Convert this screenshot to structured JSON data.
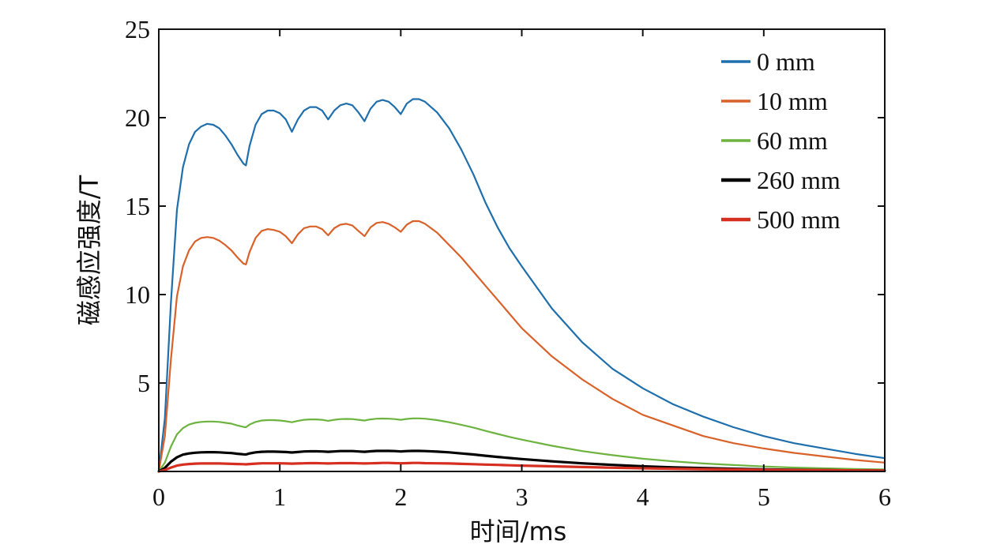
{
  "chart_data": {
    "type": "line",
    "xlabel": "时间/ms",
    "ylabel": "磁感应强度/T",
    "xlim": [
      0,
      6
    ],
    "ylim": [
      0,
      25
    ],
    "xticks": [
      0,
      1,
      2,
      3,
      4,
      5,
      6
    ],
    "yticks": [
      5,
      10,
      15,
      20,
      25
    ],
    "grid": false,
    "legend_position": "top-right",
    "x": [
      0,
      0.05,
      0.1,
      0.15,
      0.2,
      0.25,
      0.3,
      0.35,
      0.4,
      0.45,
      0.5,
      0.55,
      0.6,
      0.65,
      0.7,
      0.72,
      0.75,
      0.8,
      0.85,
      0.9,
      0.95,
      1.0,
      1.05,
      1.1,
      1.15,
      1.2,
      1.25,
      1.3,
      1.35,
      1.4,
      1.45,
      1.5,
      1.55,
      1.6,
      1.65,
      1.7,
      1.75,
      1.8,
      1.85,
      1.9,
      1.95,
      2.0,
      2.05,
      2.1,
      2.15,
      2.2,
      2.3,
      2.4,
      2.5,
      2.6,
      2.7,
      2.8,
      2.9,
      3.0,
      3.25,
      3.5,
      3.75,
      4.0,
      4.25,
      4.5,
      4.75,
      5.0,
      5.25,
      5.5,
      5.75,
      6.0
    ],
    "series": [
      {
        "name": "0 mm",
        "color": "#1f6fad",
        "values": [
          0,
          3.0,
          9.5,
          14.8,
          17.2,
          18.5,
          19.2,
          19.5,
          19.65,
          19.6,
          19.4,
          19.0,
          18.5,
          17.9,
          17.4,
          17.3,
          18.4,
          19.6,
          20.2,
          20.4,
          20.4,
          20.25,
          19.9,
          19.2,
          19.9,
          20.4,
          20.6,
          20.6,
          20.4,
          19.9,
          20.4,
          20.7,
          20.8,
          20.7,
          20.3,
          19.8,
          20.5,
          20.9,
          21.0,
          20.9,
          20.6,
          20.2,
          20.8,
          21.05,
          21.05,
          20.9,
          20.3,
          19.4,
          18.2,
          16.8,
          15.2,
          13.8,
          12.6,
          11.6,
          9.2,
          7.3,
          5.8,
          4.7,
          3.8,
          3.1,
          2.5,
          2.0,
          1.6,
          1.3,
          1.0,
          0.75
        ]
      },
      {
        "name": "10 mm",
        "color": "#d9622b",
        "values": [
          0,
          2.0,
          6.3,
          9.9,
          11.6,
          12.5,
          13.0,
          13.2,
          13.25,
          13.2,
          13.05,
          12.8,
          12.5,
          12.1,
          11.75,
          11.7,
          12.4,
          13.2,
          13.6,
          13.7,
          13.65,
          13.55,
          13.3,
          12.9,
          13.4,
          13.75,
          13.85,
          13.85,
          13.7,
          13.35,
          13.75,
          13.95,
          14.0,
          13.9,
          13.6,
          13.3,
          13.8,
          14.05,
          14.1,
          14.0,
          13.8,
          13.55,
          13.95,
          14.15,
          14.15,
          14.0,
          13.5,
          12.8,
          12.1,
          11.3,
          10.5,
          9.7,
          8.9,
          8.1,
          6.5,
          5.2,
          4.1,
          3.2,
          2.6,
          2.0,
          1.6,
          1.3,
          1.05,
          0.85,
          0.65,
          0.5
        ]
      },
      {
        "name": "60 mm",
        "color": "#6db33f",
        "values": [
          0,
          0.5,
          1.4,
          2.1,
          2.45,
          2.65,
          2.75,
          2.8,
          2.82,
          2.82,
          2.8,
          2.75,
          2.7,
          2.6,
          2.52,
          2.5,
          2.65,
          2.8,
          2.88,
          2.9,
          2.9,
          2.88,
          2.84,
          2.78,
          2.86,
          2.92,
          2.94,
          2.94,
          2.92,
          2.86,
          2.92,
          2.96,
          2.97,
          2.96,
          2.92,
          2.88,
          2.94,
          2.98,
          2.99,
          2.98,
          2.96,
          2.92,
          2.97,
          3.0,
          3.0,
          2.98,
          2.9,
          2.78,
          2.64,
          2.48,
          2.3,
          2.12,
          1.95,
          1.8,
          1.45,
          1.15,
          0.92,
          0.72,
          0.57,
          0.45,
          0.36,
          0.28,
          0.22,
          0.18,
          0.14,
          0.11
        ]
      },
      {
        "name": "260 mm",
        "color": "#000000",
        "values": [
          0,
          0.2,
          0.55,
          0.8,
          0.95,
          1.02,
          1.06,
          1.08,
          1.09,
          1.09,
          1.08,
          1.06,
          1.04,
          1.0,
          0.97,
          0.96,
          1.02,
          1.08,
          1.11,
          1.12,
          1.12,
          1.11,
          1.1,
          1.07,
          1.1,
          1.13,
          1.14,
          1.14,
          1.13,
          1.11,
          1.13,
          1.15,
          1.15,
          1.15,
          1.13,
          1.11,
          1.14,
          1.16,
          1.16,
          1.16,
          1.15,
          1.13,
          1.15,
          1.16,
          1.16,
          1.15,
          1.12,
          1.08,
          1.02,
          0.96,
          0.89,
          0.82,
          0.76,
          0.7,
          0.57,
          0.46,
          0.37,
          0.29,
          0.23,
          0.19,
          0.15,
          0.12,
          0.1,
          0.08,
          0.06,
          0.05
        ]
      },
      {
        "name": "500 mm",
        "color": "#d62e20",
        "values": [
          0,
          0.08,
          0.22,
          0.33,
          0.39,
          0.42,
          0.44,
          0.45,
          0.45,
          0.45,
          0.45,
          0.44,
          0.43,
          0.42,
          0.41,
          0.4,
          0.42,
          0.44,
          0.46,
          0.46,
          0.46,
          0.46,
          0.45,
          0.44,
          0.45,
          0.46,
          0.47,
          0.47,
          0.46,
          0.45,
          0.46,
          0.47,
          0.47,
          0.47,
          0.46,
          0.45,
          0.46,
          0.47,
          0.48,
          0.48,
          0.47,
          0.46,
          0.47,
          0.48,
          0.48,
          0.47,
          0.46,
          0.45,
          0.43,
          0.41,
          0.39,
          0.37,
          0.35,
          0.33,
          0.29,
          0.25,
          0.21,
          0.18,
          0.15,
          0.13,
          0.11,
          0.09,
          0.08,
          0.07,
          0.06,
          0.05
        ]
      }
    ]
  }
}
